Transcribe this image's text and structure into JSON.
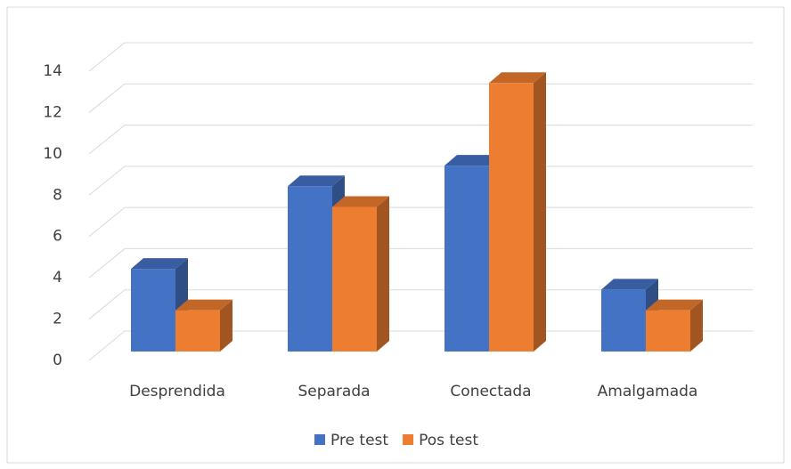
{
  "chart_data": {
    "type": "bar3d",
    "categories": [
      "Desprendida",
      "Separada",
      "Conectada",
      "Amalgamada"
    ],
    "series": [
      {
        "name": "Pre test",
        "color": "#4472c4",
        "values": [
          4,
          8,
          9,
          3
        ]
      },
      {
        "name": "Pos test",
        "color": "#ed7d31",
        "values": [
          2,
          7,
          13,
          2
        ]
      }
    ],
    "ylim": [
      0,
      14
    ],
    "yticks": [
      0,
      2,
      4,
      6,
      8,
      10,
      12,
      14
    ],
    "grid": true,
    "legend": "bottom"
  }
}
